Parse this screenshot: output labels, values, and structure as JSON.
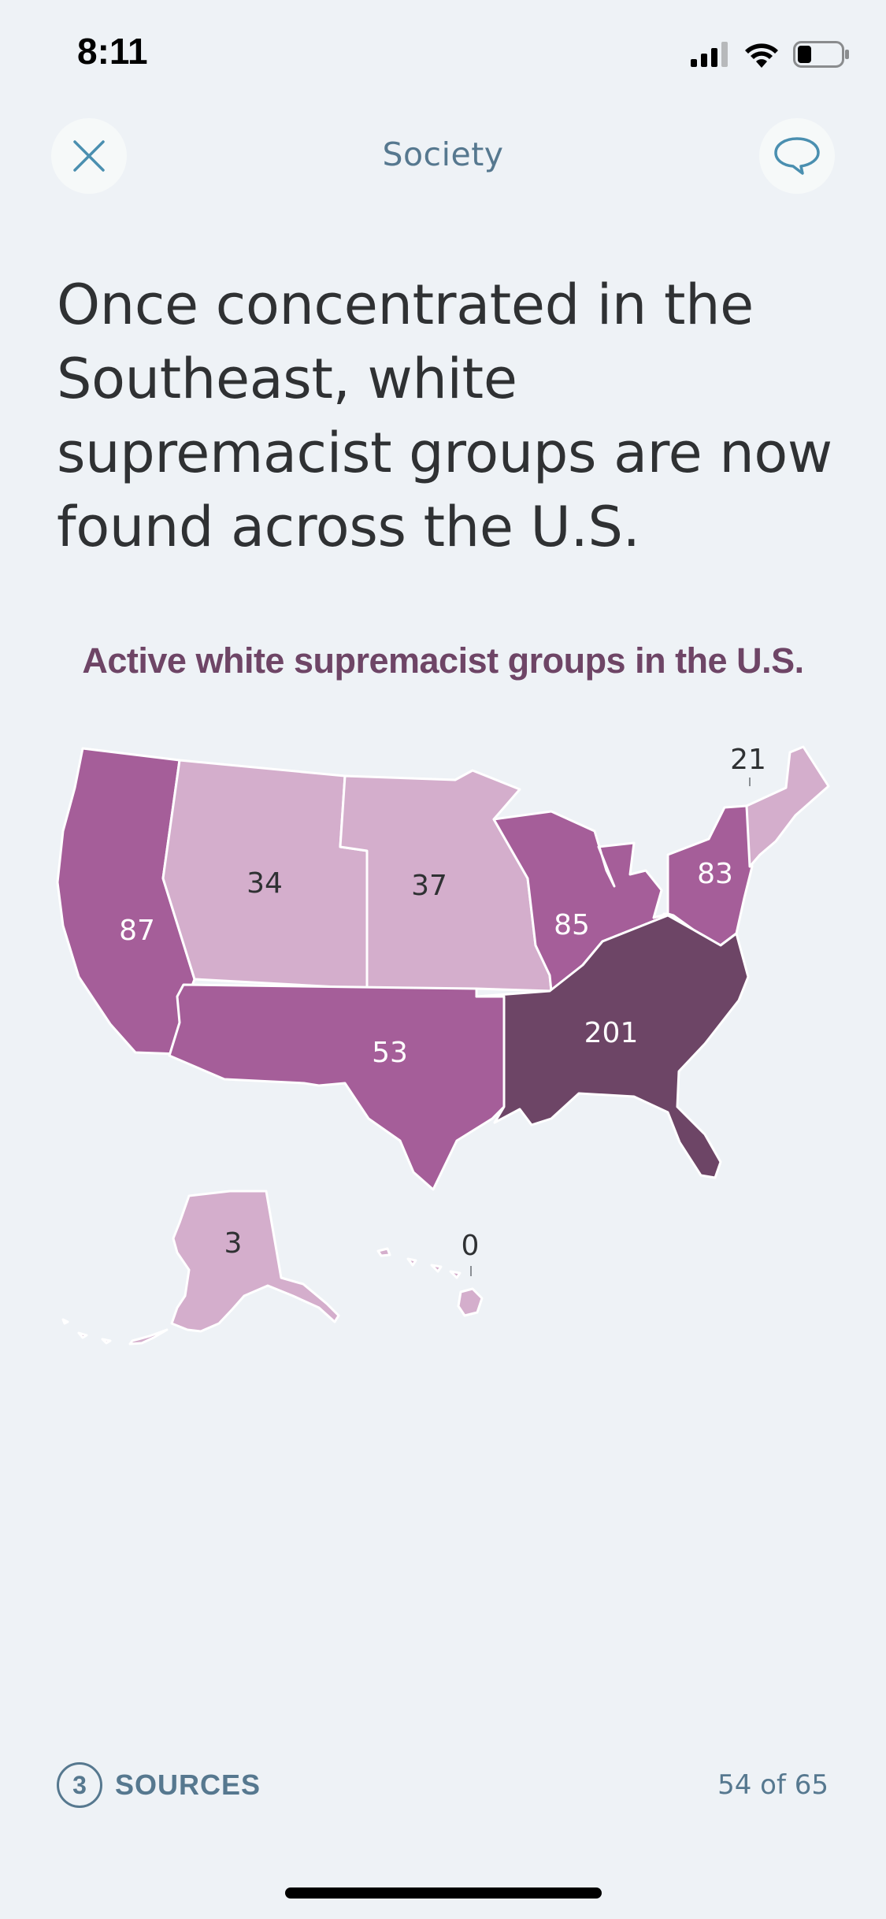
{
  "status_bar": {
    "time": "8:11"
  },
  "header": {
    "title": "Society"
  },
  "headline": "Once concentrated in the Southeast, white supremacist groups are now found across the U.S.",
  "map": {
    "title": "Active white supremacist groups in the U.S.",
    "regions": [
      {
        "id": "pacific",
        "value": "87",
        "color": "#a55e99"
      },
      {
        "id": "mountain",
        "value": "34",
        "color": "#d4aecc"
      },
      {
        "id": "plains",
        "value": "37",
        "color": "#d4aecc"
      },
      {
        "id": "midwest",
        "value": "85",
        "color": "#a55e99"
      },
      {
        "id": "mid-atlantic",
        "value": "83",
        "color": "#a55e99"
      },
      {
        "id": "new-england",
        "value": "21",
        "color": "#d4aecc"
      },
      {
        "id": "southwest",
        "value": "53",
        "color": "#a55e99"
      },
      {
        "id": "southeast",
        "value": "201",
        "color": "#6d4566"
      },
      {
        "id": "alaska",
        "value": "3",
        "color": "#d4aecc"
      },
      {
        "id": "hawaii",
        "value": "0",
        "color": "#d4aecc"
      }
    ]
  },
  "footer": {
    "sources_count": "3",
    "sources_label": "SOURCES",
    "pager": "54 of 65"
  }
}
